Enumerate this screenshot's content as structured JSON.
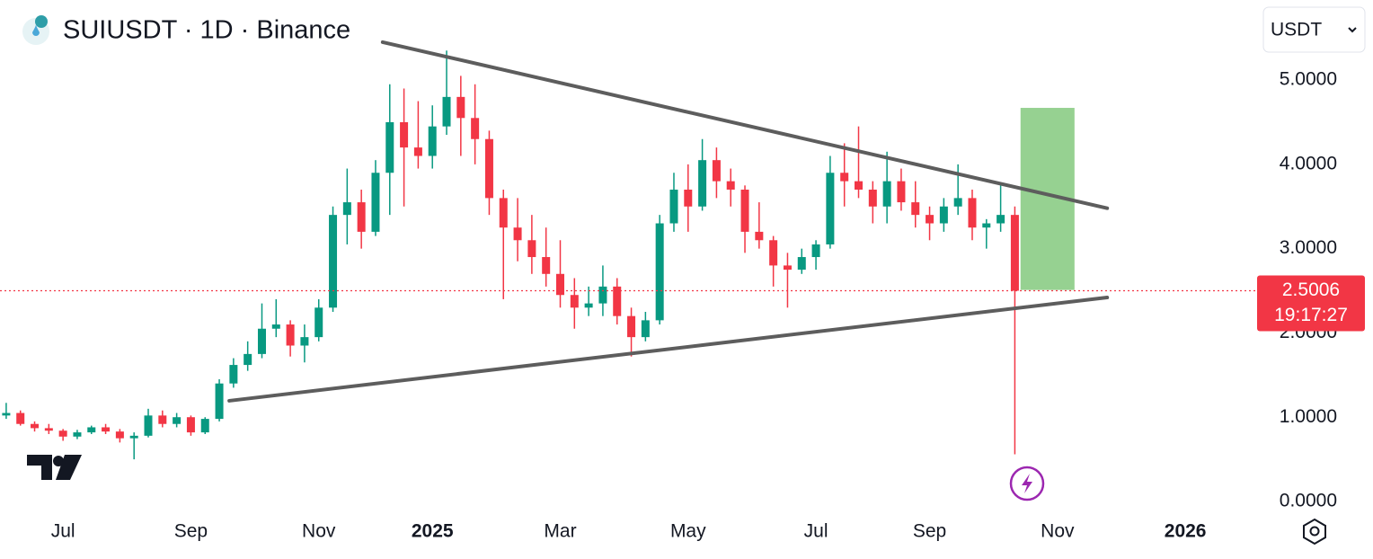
{
  "chart_data": {
    "type": "candlestick",
    "title": "SUIUSDT · 1D · Binance",
    "currency": "USDT",
    "categories": [
      null,
      null,
      null,
      null,
      "Jul",
      null,
      null,
      null,
      null,
      null,
      null,
      null,
      null,
      "Sep",
      null,
      null,
      null,
      null,
      null,
      null,
      null,
      null,
      "Nov",
      null,
      null,
      null,
      null,
      null,
      null,
      null,
      "2025",
      null,
      null,
      null,
      null,
      null,
      null,
      null,
      null,
      "Mar",
      null,
      null,
      null,
      null,
      null,
      null,
      null,
      null,
      "May",
      null,
      null,
      null,
      null,
      null,
      null,
      null,
      null,
      "Jul",
      null,
      null,
      null,
      null,
      null,
      null,
      null,
      "Sep",
      null,
      null,
      null,
      null,
      null,
      null,
      null,
      null,
      "Nov",
      null,
      null,
      null,
      null,
      null,
      null,
      null,
      null,
      "2026",
      null,
      null,
      null,
      null
    ],
    "open": [
      1.02,
      1.05,
      0.92,
      0.87,
      0.84,
      0.77,
      0.82,
      0.88,
      0.83,
      0.75,
      0.78,
      1.02,
      0.92,
      1.0,
      0.82,
      0.98,
      1.4,
      1.62,
      1.75,
      2.05,
      2.1,
      1.85,
      1.95,
      2.3,
      3.4,
      3.55,
      3.2,
      3.9,
      4.5,
      4.2,
      4.1,
      4.45,
      4.8,
      4.55,
      4.3,
      3.6,
      3.25,
      3.1,
      2.9,
      2.7,
      2.45,
      2.3,
      2.35,
      2.55,
      2.2,
      1.95,
      2.15,
      3.3,
      3.7,
      3.5,
      4.05,
      3.8,
      3.7,
      3.2,
      3.1,
      2.8,
      2.75,
      2.9,
      3.05,
      3.9,
      3.8,
      3.7,
      3.5,
      3.8,
      3.55,
      3.4,
      3.3,
      3.5,
      3.6,
      3.25,
      3.3,
      3.4,
      null,
      null,
      null,
      null,
      null,
      null,
      null,
      null,
      null,
      null,
      null,
      null,
      null,
      null,
      null,
      null
    ],
    "high": [
      1.17,
      1.08,
      0.95,
      0.92,
      0.86,
      0.85,
      0.9,
      0.92,
      0.86,
      0.82,
      1.1,
      1.08,
      1.05,
      1.02,
      1.0,
      1.45,
      1.7,
      1.9,
      2.35,
      2.4,
      2.15,
      2.1,
      2.4,
      3.5,
      3.95,
      3.7,
      4.05,
      4.95,
      4.9,
      4.75,
      4.7,
      5.35,
      5.05,
      4.95,
      4.4,
      3.7,
      3.6,
      3.4,
      3.25,
      3.1,
      2.65,
      2.55,
      2.8,
      2.65,
      2.3,
      2.25,
      3.4,
      3.9,
      4.0,
      4.3,
      4.2,
      3.95,
      3.75,
      3.55,
      3.15,
      2.95,
      3.0,
      3.1,
      4.1,
      4.25,
      4.45,
      3.8,
      4.15,
      3.95,
      3.8,
      3.5,
      3.6,
      4.0,
      3.7,
      3.35,
      3.75,
      3.5,
      null,
      null,
      null,
      null,
      null,
      null,
      null,
      null,
      null,
      null,
      null,
      null,
      null,
      null,
      null,
      null
    ],
    "low": [
      0.98,
      0.9,
      0.83,
      0.8,
      0.72,
      0.74,
      0.8,
      0.8,
      0.7,
      0.5,
      0.76,
      0.88,
      0.88,
      0.78,
      0.8,
      0.95,
      1.35,
      1.55,
      1.7,
      1.95,
      1.72,
      1.65,
      1.9,
      2.25,
      3.05,
      3.0,
      3.15,
      3.4,
      3.5,
      3.95,
      3.95,
      4.35,
      4.1,
      4.0,
      3.4,
      2.4,
      2.85,
      2.7,
      2.55,
      2.3,
      2.05,
      2.2,
      2.2,
      2.1,
      1.72,
      1.9,
      2.1,
      3.2,
      3.2,
      3.45,
      3.6,
      3.5,
      2.95,
      3.0,
      2.55,
      2.3,
      2.7,
      2.75,
      3.0,
      3.5,
      3.6,
      3.3,
      3.3,
      3.45,
      3.25,
      3.1,
      3.2,
      3.4,
      3.1,
      3.0,
      3.2,
      0.56,
      null,
      null,
      null,
      null,
      null,
      null,
      null,
      null,
      null,
      null,
      null,
      null,
      null,
      null,
      null,
      null
    ],
    "close": [
      1.05,
      0.92,
      0.87,
      0.84,
      0.77,
      0.82,
      0.88,
      0.83,
      0.75,
      0.78,
      1.02,
      0.92,
      1.0,
      0.82,
      0.98,
      1.4,
      1.62,
      1.75,
      2.05,
      2.1,
      1.85,
      1.95,
      2.3,
      3.4,
      3.55,
      3.2,
      3.9,
      4.5,
      4.2,
      4.1,
      4.45,
      4.8,
      4.55,
      4.3,
      3.6,
      3.25,
      3.1,
      2.9,
      2.7,
      2.45,
      2.3,
      2.35,
      2.55,
      2.2,
      1.95,
      2.15,
      3.3,
      3.7,
      3.5,
      4.05,
      3.8,
      3.7,
      3.2,
      3.1,
      2.8,
      2.75,
      2.9,
      3.05,
      3.9,
      3.8,
      3.7,
      3.5,
      3.8,
      3.55,
      3.4,
      3.3,
      3.5,
      3.6,
      3.25,
      3.3,
      3.4,
      2.5006,
      null,
      null,
      null,
      null,
      null,
      null,
      null,
      null,
      null,
      null,
      null,
      null,
      null,
      null,
      null,
      null
    ],
    "up_color": "#089981",
    "down_color": "#f23645",
    "ylim": [
      0,
      5.95
    ],
    "yticks": [
      {
        "value": 0,
        "label": "0.0000"
      },
      {
        "value": 1,
        "label": "1.0000"
      },
      {
        "value": 2,
        "label": "2.0000"
      },
      {
        "value": 3,
        "label": "3.0000"
      },
      {
        "value": 4,
        "label": "4.0000"
      },
      {
        "value": 5,
        "label": "5.0000"
      }
    ],
    "last_price": 2.5006,
    "countdown": "19:17:27",
    "trendlines": [
      {
        "start_index": 26.5,
        "start_price": 5.45,
        "end_index": 77.5,
        "end_price": 3.48,
        "color": "#5d5d5d"
      },
      {
        "start_index": 15.7,
        "start_price": 1.195,
        "end_index": 77.5,
        "end_price": 2.42,
        "color": "#5d5d5d"
      }
    ],
    "target_zone": {
      "start_index": 71.4,
      "end_index": 75.2,
      "top": 4.67,
      "bottom": 2.51,
      "color": "#7cc576"
    }
  }
}
